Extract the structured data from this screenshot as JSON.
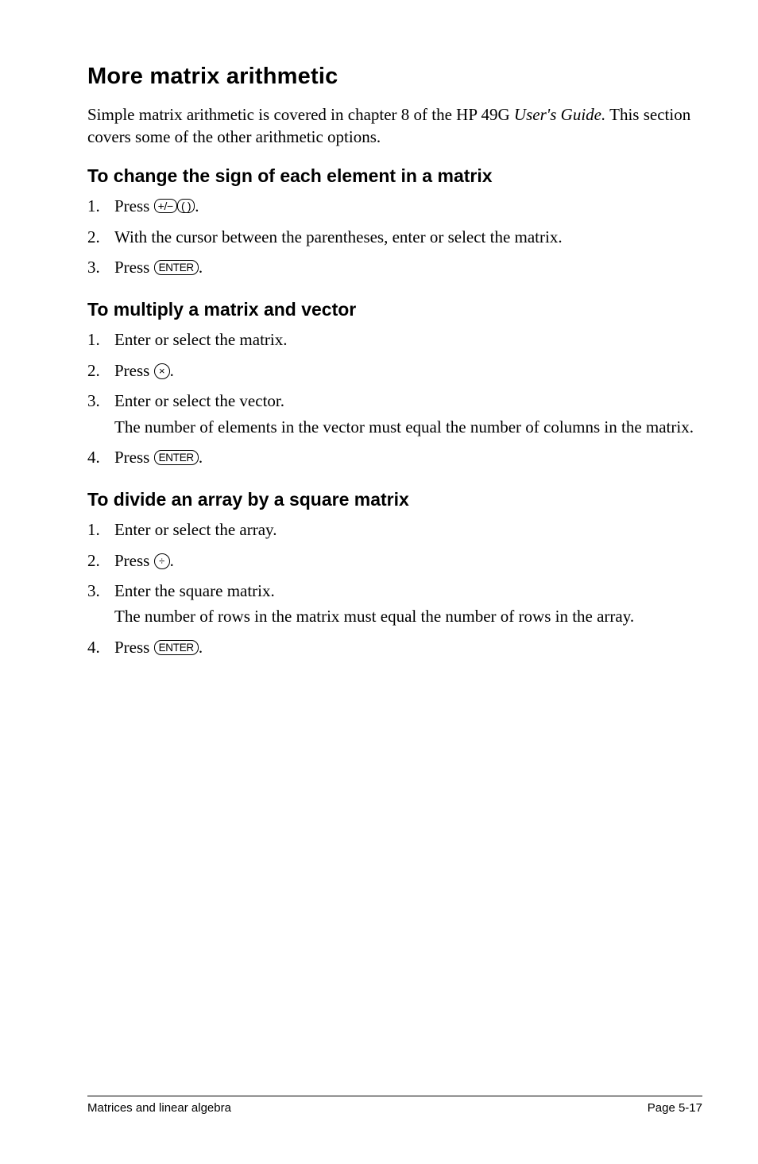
{
  "title": "More matrix arithmetic",
  "intro_a": "Simple matrix arithmetic is covered in chapter 8 of the HP 49G ",
  "intro_italic": "User's Guide.",
  "intro_b": " This section covers some of the other arithmetic options.",
  "sec1": {
    "heading": "To change the sign of each element in a matrix",
    "s1_a": "Press ",
    "s1_key1": "+/−",
    "s1_key2": "( )",
    "s1_b": ".",
    "s2": "With the cursor between the parentheses, enter or select the matrix.",
    "s3_a": "Press ",
    "s3_key": "ENTER",
    "s3_b": "."
  },
  "sec2": {
    "heading": "To multiply a matrix and vector",
    "s1": "Enter or select the matrix.",
    "s2_a": "Press ",
    "s2_key": "×",
    "s2_b": ".",
    "s3": "Enter or select the vector.",
    "s3_note": "The number of elements in the vector must equal the number of columns in the matrix.",
    "s4_a": "Press ",
    "s4_key": "ENTER",
    "s4_b": "."
  },
  "sec3": {
    "heading": "To divide an array by a square matrix",
    "s1": "Enter or select the array.",
    "s2_a": "Press ",
    "s2_key": "÷",
    "s2_b": ".",
    "s3": "Enter the square matrix.",
    "s3_note": "The number of rows in the matrix must equal the number of rows in the array.",
    "s4_a": "Press ",
    "s4_key": "ENTER",
    "s4_b": "."
  },
  "footer": {
    "left": "Matrices and linear algebra",
    "right": "Page 5-17"
  }
}
